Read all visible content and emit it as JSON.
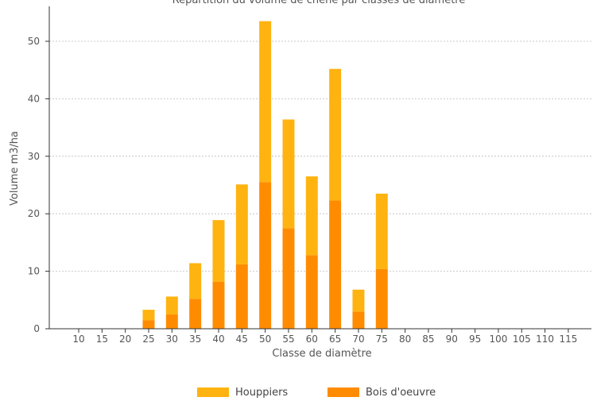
{
  "chart_data": {
    "type": "bar",
    "stacked": true,
    "title": "Répartition du volume de chêne par classes de diamètre",
    "xlabel": "Classe de diamètre",
    "ylabel": "Volume m3/ha",
    "ylim": [
      0,
      55
    ],
    "yticks": [
      0,
      10,
      20,
      30,
      40,
      50
    ],
    "grid": true,
    "legend_position": "bottom",
    "categories": [
      "10",
      "15",
      "20",
      "25",
      "30",
      "35",
      "40",
      "45",
      "50",
      "55",
      "60",
      "65",
      "70",
      "75",
      "80",
      "85",
      "90",
      "95",
      "100",
      "105",
      "110",
      "115"
    ],
    "series": [
      {
        "name": "Bois d'oeuvre",
        "color": "#ff8c00",
        "values": [
          0,
          0,
          0,
          1.5,
          2.5,
          5.2,
          8.2,
          11.2,
          25.5,
          17.5,
          12.8,
          22.3,
          3.0,
          10.4,
          0,
          0,
          0,
          0,
          0,
          0,
          0,
          0
        ]
      },
      {
        "name": "Houppiers",
        "color": "#ffb310",
        "values": [
          0,
          0,
          0,
          1.8,
          3.1,
          6.2,
          10.7,
          13.9,
          28.0,
          18.9,
          13.7,
          22.9,
          3.8,
          13.1,
          0,
          0,
          0,
          0,
          0,
          0,
          0,
          0
        ]
      }
    ],
    "legend_order": [
      "Houppiers",
      "Bois d'oeuvre"
    ]
  }
}
